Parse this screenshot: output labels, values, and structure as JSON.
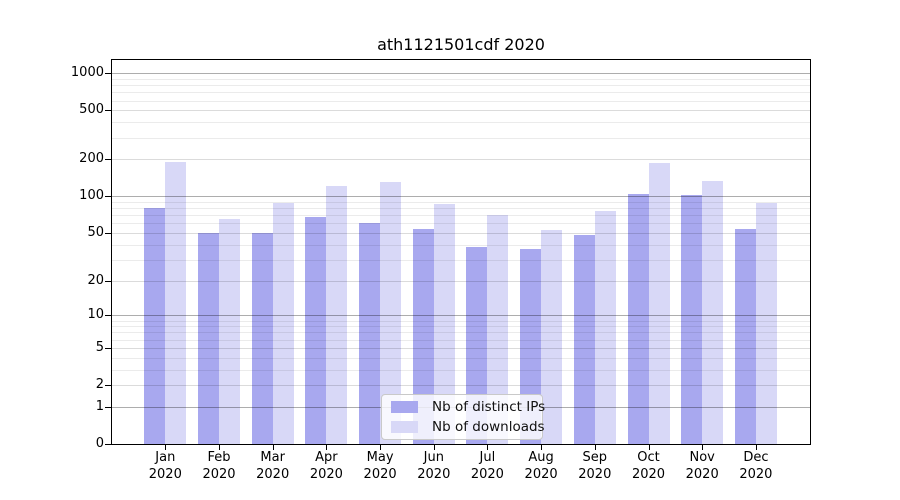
{
  "title": "ath1121501cdf 2020",
  "chart_data": {
    "type": "bar",
    "title": "ath1121501cdf 2020",
    "categories": [
      "Jan",
      "Feb",
      "Mar",
      "Apr",
      "May",
      "Jun",
      "Jul",
      "Aug",
      "Sep",
      "Oct",
      "Nov",
      "Dec"
    ],
    "x_year": "2020",
    "series": [
      {
        "name": "Nb of distinct IPs",
        "color": "#a8a8ef",
        "values": [
          81,
          50,
          50,
          68,
          61,
          54,
          38,
          37,
          48,
          104,
          102,
          54
        ]
      },
      {
        "name": "Nb of downloads",
        "color": "#d8d8f7",
        "values": [
          190,
          65,
          89,
          122,
          130,
          87,
          70,
          53,
          76,
          186,
          133,
          88
        ]
      }
    ],
    "y_ticks": [
      0,
      1,
      2,
      5,
      10,
      20,
      50,
      100,
      200,
      500,
      1000
    ],
    "y_scale": "log1p",
    "ylim": [
      0,
      1280
    ],
    "xlabel": "",
    "ylabel": "",
    "grid": "on",
    "legend_position": "bottom-center"
  }
}
